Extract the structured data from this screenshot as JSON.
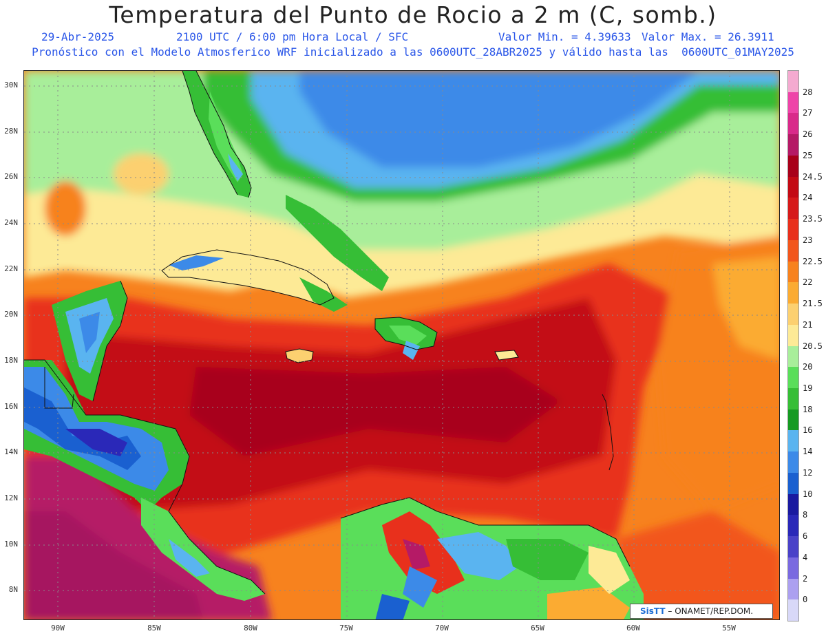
{
  "header": {
    "title": "Temperatura del Punto de Rocio a 2 m (C, somb.)",
    "date": "29-Abr-2025",
    "time": "2100 UTC / 6:00 pm Hora Local / SFC",
    "min": "Valor Min. = 4.39633",
    "max": "Valor Max. = 26.3911",
    "model_line": "Pronóstico con el Modelo Atmosferico WRF inicializado a las 0600UTC_28ABR2025 y válido hasta las  0600UTC_01MAY2025"
  },
  "axes": {
    "lat_labels": [
      "30N",
      "28N",
      "26N",
      "24N",
      "22N",
      "20N",
      "18N",
      "16N",
      "14N",
      "12N",
      "10N",
      "8N"
    ],
    "lon_labels": [
      "90W",
      "85W",
      "80W",
      "75W",
      "70W",
      "65W",
      "60W",
      "55W"
    ]
  },
  "colorbar": {
    "labels": [
      "28",
      "27",
      "26",
      "25",
      "24.5",
      "24",
      "23.5",
      "23",
      "22.5",
      "22",
      "21.5",
      "21",
      "20.5",
      "20",
      "19",
      "18",
      "16",
      "14",
      "12",
      "10",
      "8",
      "6",
      "4",
      "2",
      "0"
    ],
    "colors": [
      "#f4aad0",
      "#ee44a8",
      "#d92a8a",
      "#b51a66",
      "#a8001a",
      "#c30a14",
      "#d61a1a",
      "#e8301c",
      "#f2561c",
      "#f7821e",
      "#fbab32",
      "#fcd070",
      "#fdea96",
      "#a8ee9a",
      "#5ade5a",
      "#36be36",
      "#169a22",
      "#5ab4f0",
      "#3c8ae8",
      "#1a60d0",
      "#1a1aa0",
      "#2a28b8",
      "#4a42c8",
      "#7a6ae0",
      "#aca0f0",
      "#d8d8f8"
    ]
  },
  "credit": {
    "logo": "SisTT",
    "text": "– ONAMET/REP.DOM."
  }
}
